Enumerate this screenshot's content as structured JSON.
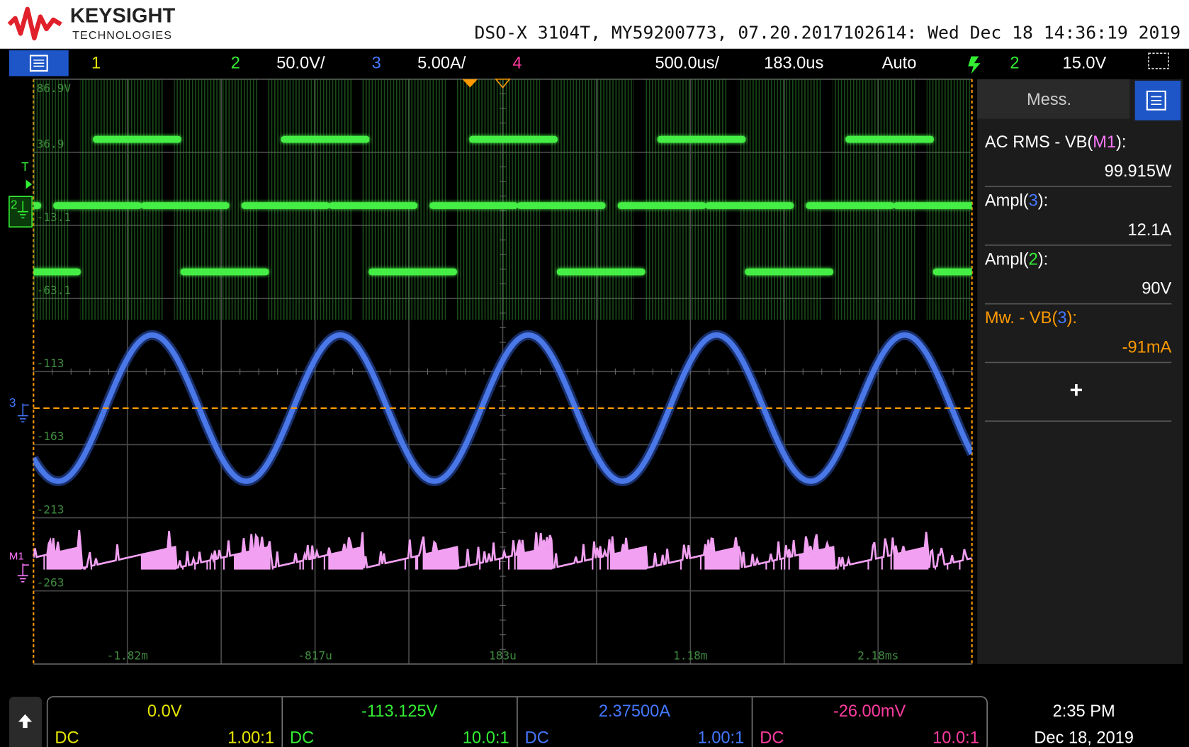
{
  "header": {
    "brand": "KEYSIGHT",
    "brand_sub": "TECHNOLOGIES",
    "instrument_info": "DSO-X 3104T, MY59200773, 07.20.2017102614: Wed Dec 18 14:36:19 2019"
  },
  "top_bar": {
    "channels": [
      {
        "label": "1",
        "color": "#e6e600"
      },
      {
        "label": "2",
        "scale": "50.0V/",
        "color": "#33ee33"
      },
      {
        "label": "3",
        "scale": "5.00A/",
        "color": "#4477ff"
      },
      {
        "label": "4",
        "color": "#ff3ca0"
      }
    ],
    "timebase": "500.0us/",
    "delay": "183.0us",
    "trigger_mode": "Auto",
    "trigger_source": "2",
    "trigger_level": "15.0V"
  },
  "graticule": {
    "y_labels": [
      "86.9V",
      "36.9",
      "-13.1",
      "-63.1",
      "-113",
      "-163",
      "-213",
      "-263"
    ],
    "x_labels": [
      "-1.82m",
      "-817u",
      "183u",
      "1.18m",
      "2.18ms"
    ]
  },
  "markers": [
    "T",
    "2",
    "3",
    "M1"
  ],
  "measurements": {
    "title": "Mess.",
    "items": [
      {
        "label": [
          {
            "text": "AC RMS - VB(",
            "color": "#ffffff"
          },
          {
            "text": "M1",
            "color": "#ff77ff"
          },
          {
            "text": "):",
            "color": "#ffffff"
          }
        ],
        "value": "99.915W",
        "value_color": "#ffffff"
      },
      {
        "label": [
          {
            "text": "Ampl(",
            "color": "#ffffff"
          },
          {
            "text": "3",
            "color": "#4477ff"
          },
          {
            "text": "):",
            "color": "#ffffff"
          }
        ],
        "value": "12.1A",
        "value_color": "#ffffff"
      },
      {
        "label": [
          {
            "text": "Ampl(",
            "color": "#ffffff"
          },
          {
            "text": "2",
            "color": "#33ee33"
          },
          {
            "text": "):",
            "color": "#ffffff"
          }
        ],
        "value": "90V",
        "value_color": "#ffffff"
      },
      {
        "label": [
          {
            "text": "Mw. - VB(",
            "color": "#ff9900"
          },
          {
            "text": "3",
            "color": "#4477ff"
          },
          {
            "text": "):",
            "color": "#ff9900"
          }
        ],
        "value": "-91mA",
        "value_color": "#ff9900"
      }
    ]
  },
  "status": {
    "channels": [
      {
        "offset": "0.0V",
        "coupling": "DC",
        "probe": "1.00:1",
        "color": "#e6e600"
      },
      {
        "offset": "-113.125V",
        "coupling": "DC",
        "probe": "10.0:1",
        "color": "#33ee33"
      },
      {
        "offset": "2.37500A",
        "coupling": "DC",
        "probe": "1.00:1",
        "color": "#4477ff"
      },
      {
        "offset": "-26.00mV",
        "coupling": "DC",
        "probe": "10.0:1",
        "color": "#ff3ca0"
      }
    ],
    "time": "2:35 PM",
    "date": "Dec 18, 2019"
  }
}
